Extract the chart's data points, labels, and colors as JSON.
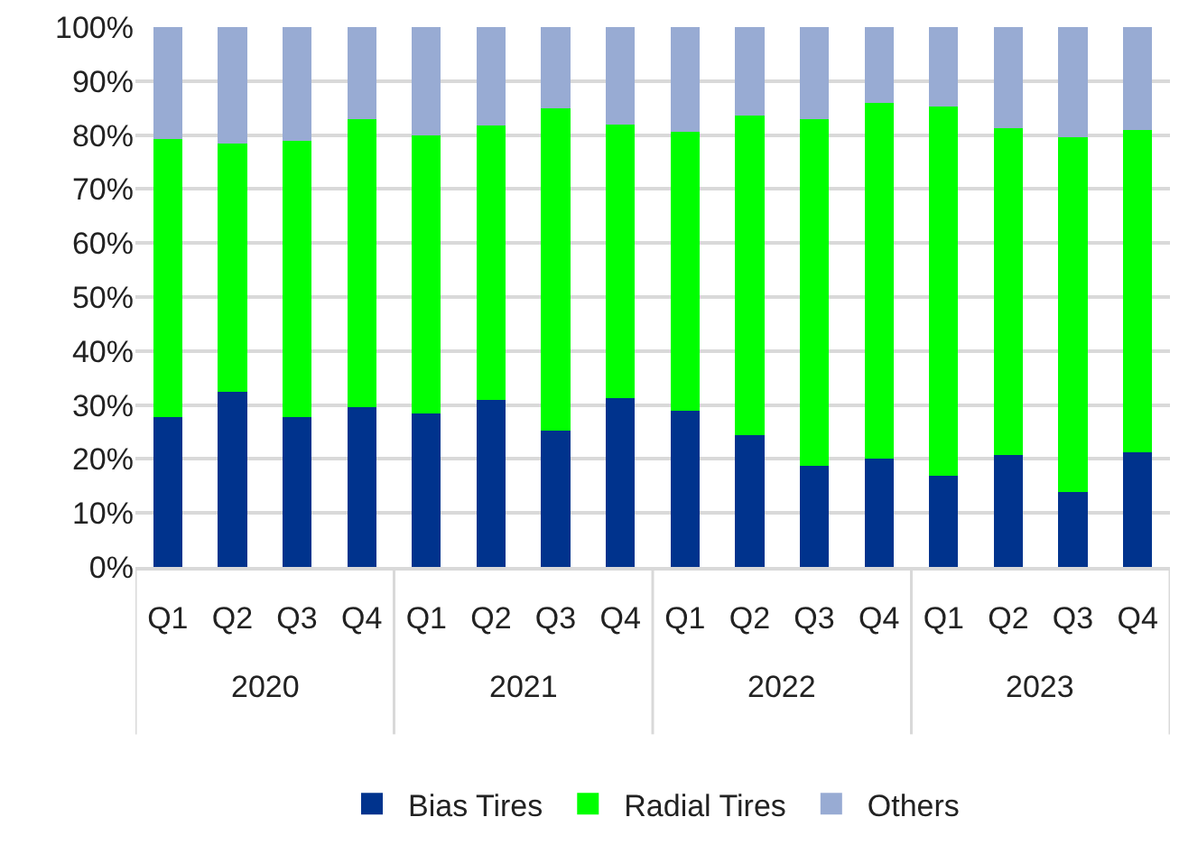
{
  "chart_data": {
    "type": "bar",
    "stacked": true,
    "categories": [
      "Q1",
      "Q2",
      "Q3",
      "Q4",
      "Q1",
      "Q2",
      "Q3",
      "Q4",
      "Q1",
      "Q2",
      "Q3",
      "Q4",
      "Q1",
      "Q2",
      "Q3",
      "Q4"
    ],
    "annotations": [
      "2020",
      "2021",
      "2022",
      "2023"
    ],
    "series": [
      {
        "name": "Bias Tires",
        "color": "#00338d",
        "values": [
          27.8,
          32.5,
          27.7,
          29.6,
          28.5,
          30.9,
          25.2,
          31.2,
          28.9,
          24.4,
          18.7,
          20.1,
          16.9,
          20.8,
          13.8,
          21.3
        ]
      },
      {
        "name": "Radial Tires",
        "color": "#00ff00",
        "values": [
          51.4,
          46.0,
          51.2,
          53.3,
          51.4,
          50.9,
          59.7,
          50.8,
          51.7,
          59.2,
          64.3,
          65.9,
          68.4,
          60.5,
          65.8,
          59.7
        ]
      },
      {
        "name": "Others",
        "color": "#98abd3",
        "values": [
          20.8,
          21.5,
          21.1,
          17.1,
          20.1,
          18.2,
          15.1,
          18.0,
          19.4,
          16.4,
          17.0,
          14.0,
          14.7,
          18.7,
          20.4,
          19.0
        ]
      }
    ],
    "ylim": [
      0,
      100
    ],
    "yticks": [
      {
        "value": 0,
        "label": "0%"
      },
      {
        "value": 10,
        "label": "10%"
      },
      {
        "value": 20,
        "label": "20%"
      },
      {
        "value": 30,
        "label": "30%"
      },
      {
        "value": 40,
        "label": "40%"
      },
      {
        "value": 50,
        "label": "50%"
      },
      {
        "value": 60,
        "label": "60%"
      },
      {
        "value": 70,
        "label": "70%"
      },
      {
        "value": 80,
        "label": "80%"
      },
      {
        "value": 90,
        "label": "90%"
      },
      {
        "value": 100,
        "label": "100%"
      }
    ],
    "grid": "y",
    "legend": "bottom"
  }
}
